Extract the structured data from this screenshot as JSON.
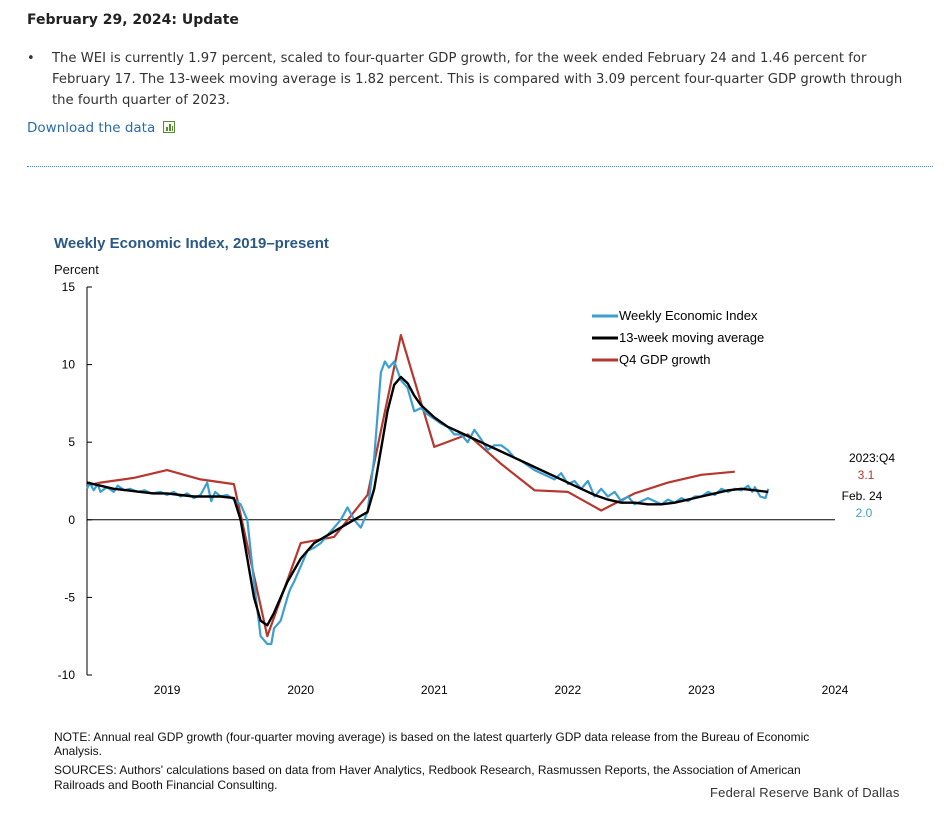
{
  "page": {
    "update_title": "February 29, 2024: Update",
    "bullet_text": "The WEI is currently 1.97 percent, scaled to four-quarter GDP growth, for the week ended February 24 and 1.46 percent for February 17. The 13-week moving average is 1.82 percent. This is compared with 3.09 percent four-quarter GDP growth through the fourth quarter of 2023.",
    "download_label": "Download the data",
    "download_icon": "spreadsheet-icon",
    "note": "NOTE: Annual real GDP growth (four-quarter moving average) is based on the latest quarterly GDP data release from the Bureau of Economic Analysis.",
    "sources": "SOURCES: Authors' calculations based on data from Haver Analytics, Redbook Research, Rasmussen Reports, the Association of American Railroads and Booth Financial Consulting.",
    "credit": "Federal Reserve Bank of Dallas"
  },
  "chart_data": {
    "type": "line",
    "title": "Weekly Economic Index, 2019–present",
    "ylabel": "Percent",
    "xlabel": "",
    "ylim": [
      -10,
      15
    ],
    "xlim": [
      2018.4,
      2024.0
    ],
    "yticks": [
      15,
      10,
      5,
      0,
      -5,
      -10
    ],
    "ytick_labels": [
      "15",
      "10",
      "5",
      "0",
      "-5",
      "-10"
    ],
    "xticks": [
      2019,
      2020,
      2021,
      2022,
      2023,
      2024
    ],
    "xtick_labels": [
      "2019",
      "2020",
      "2021",
      "2022",
      "2023",
      "2024"
    ],
    "legend": {
      "placement": "top-right"
    },
    "colors": {
      "wei": "#3d9fd0",
      "ma": "#000000",
      "gdp": "#b5372e"
    },
    "annotations": {
      "gdp_period": "2023:Q4",
      "gdp_value": "3.1",
      "wei_period": "Feb. 24",
      "wei_value": "2.0"
    },
    "series": [
      {
        "name": "Weekly Economic Index",
        "x": [
          2018.4,
          2018.42,
          2018.45,
          2018.48,
          2018.5,
          2018.55,
          2018.6,
          2018.63,
          2018.68,
          2018.72,
          2018.78,
          2018.83,
          2018.88,
          2018.95,
          2019.0,
          2019.05,
          2019.1,
          2019.15,
          2019.2,
          2019.25,
          2019.3,
          2019.33,
          2019.36,
          2019.4,
          2019.45,
          2019.5,
          2019.55,
          2019.6,
          2019.65,
          2019.7,
          2019.75,
          2019.78,
          2019.8,
          2019.85,
          2019.9,
          2019.92,
          2019.95,
          2020.0,
          2020.05,
          2020.1,
          2020.15,
          2020.2,
          2020.25,
          2020.3,
          2020.35,
          2020.4,
          2020.45,
          2020.5,
          2020.55,
          2020.6,
          2020.63,
          2020.66,
          2020.7,
          2020.75,
          2020.8,
          2020.85,
          2020.9,
          2020.95,
          2021.0,
          2021.05,
          2021.1,
          2021.15,
          2021.2,
          2021.25,
          2021.3,
          2021.35,
          2021.4,
          2021.45,
          2021.5,
          2021.55,
          2021.6,
          2021.65,
          2021.7,
          2021.75,
          2021.8,
          2021.85,
          2021.9,
          2021.95,
          2022.0,
          2022.05,
          2022.1,
          2022.15,
          2022.2,
          2022.25,
          2022.3,
          2022.35,
          2022.4,
          2022.45,
          2022.5,
          2022.55,
          2022.6,
          2022.65,
          2022.7,
          2022.75,
          2022.8,
          2022.85,
          2022.9,
          2022.95,
          2023.0,
          2023.05,
          2023.1,
          2023.15,
          2023.2,
          2023.25,
          2023.3,
          2023.35,
          2023.38,
          2023.4,
          2023.44,
          2023.48,
          2023.5
        ],
        "y": [
          2.0,
          2.4,
          1.9,
          2.3,
          1.8,
          2.1,
          1.8,
          2.2,
          1.9,
          2.0,
          1.8,
          1.9,
          1.7,
          1.8,
          1.6,
          1.8,
          1.5,
          1.7,
          1.4,
          1.6,
          2.4,
          1.2,
          1.8,
          1.5,
          1.6,
          1.3,
          1.0,
          0.0,
          -4.0,
          -7.5,
          -8.0,
          -8.0,
          -7.0,
          -6.5,
          -5.0,
          -4.5,
          -4.0,
          -3.0,
          -2.0,
          -1.8,
          -1.5,
          -1.0,
          -0.5,
          0.0,
          0.8,
          0.0,
          -0.5,
          0.5,
          4.0,
          9.5,
          10.2,
          9.8,
          10.2,
          9.0,
          8.5,
          7.0,
          7.2,
          6.8,
          6.5,
          6.2,
          6.0,
          5.5,
          5.5,
          5.0,
          5.8,
          5.2,
          4.5,
          4.8,
          4.8,
          4.5,
          4.0,
          3.8,
          3.5,
          3.2,
          3.0,
          2.8,
          2.6,
          3.0,
          2.3,
          2.5,
          2.0,
          2.5,
          1.5,
          2.0,
          1.5,
          1.8,
          1.2,
          1.5,
          1.0,
          1.2,
          1.4,
          1.2,
          1.0,
          1.3,
          1.1,
          1.4,
          1.2,
          1.5,
          1.5,
          1.8,
          1.6,
          2.0,
          1.8,
          2.0,
          1.9,
          2.2,
          1.8,
          2.1,
          1.5,
          1.4,
          2.0
        ]
      },
      {
        "name": "13-week moving average",
        "x": [
          2018.4,
          2018.5,
          2018.6,
          2018.7,
          2018.8,
          2018.9,
          2019.0,
          2019.1,
          2019.2,
          2019.3,
          2019.4,
          2019.5,
          2019.55,
          2019.6,
          2019.65,
          2019.7,
          2019.75,
          2019.8,
          2019.85,
          2019.9,
          2020.0,
          2020.1,
          2020.2,
          2020.3,
          2020.4,
          2020.5,
          2020.55,
          2020.6,
          2020.65,
          2020.7,
          2020.75,
          2020.8,
          2020.85,
          2020.9,
          2021.0,
          2021.1,
          2021.2,
          2021.3,
          2021.4,
          2021.5,
          2021.6,
          2021.7,
          2021.8,
          2021.9,
          2022.0,
          2022.1,
          2022.2,
          2022.3,
          2022.4,
          2022.5,
          2022.6,
          2022.7,
          2022.8,
          2022.9,
          2023.0,
          2023.1,
          2023.2,
          2023.3,
          2023.4,
          2023.5
        ],
        "y": [
          2.4,
          2.2,
          2.0,
          1.9,
          1.8,
          1.7,
          1.7,
          1.6,
          1.5,
          1.5,
          1.5,
          1.4,
          0.0,
          -2.5,
          -5.0,
          -6.5,
          -6.8,
          -6.0,
          -5.0,
          -4.0,
          -2.5,
          -1.5,
          -1.0,
          -0.5,
          0.0,
          0.5,
          2.0,
          4.5,
          7.0,
          8.7,
          9.2,
          8.8,
          8.0,
          7.4,
          6.6,
          6.0,
          5.6,
          5.2,
          4.8,
          4.4,
          4.0,
          3.6,
          3.2,
          2.8,
          2.4,
          2.0,
          1.6,
          1.3,
          1.1,
          1.1,
          1.0,
          1.0,
          1.1,
          1.3,
          1.5,
          1.7,
          1.9,
          2.0,
          1.9,
          1.8
        ]
      },
      {
        "name": "Q4 GDP growth",
        "x": [
          2018.4,
          2018.5,
          2018.75,
          2019.0,
          2019.25,
          2019.5,
          2019.75,
          2020.0,
          2020.25,
          2020.5,
          2020.75,
          2021.0,
          2021.25,
          2021.5,
          2021.75,
          2022.0,
          2022.25,
          2022.5,
          2022.75,
          2023.0,
          2023.25
        ],
        "y": [
          2.2,
          2.4,
          2.7,
          3.2,
          2.6,
          2.3,
          -7.5,
          -1.5,
          -1.1,
          1.6,
          11.9,
          4.7,
          5.5,
          3.6,
          1.9,
          1.8,
          0.6,
          1.7,
          2.4,
          2.9,
          3.1
        ]
      }
    ]
  }
}
